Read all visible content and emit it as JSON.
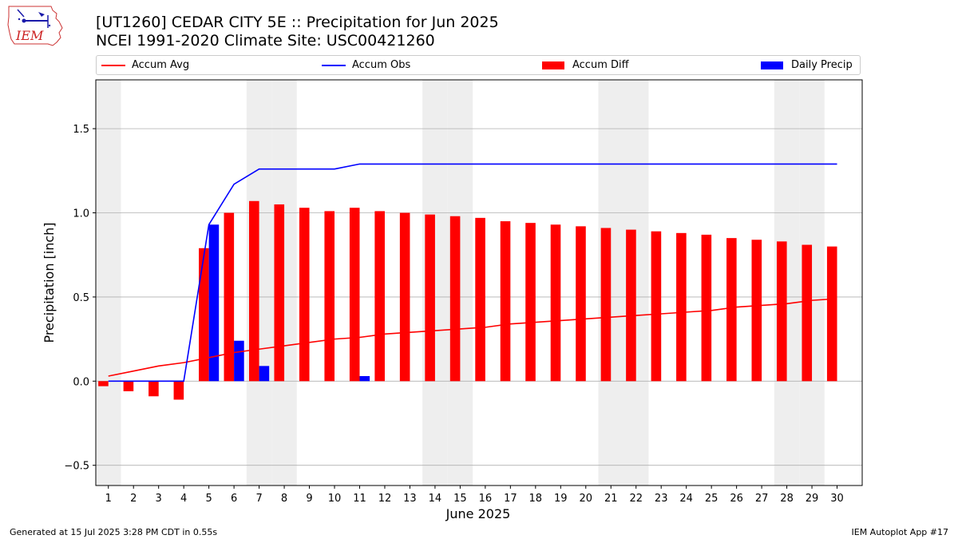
{
  "header": {
    "title_line1": "[UT1260] CEDAR CITY 5E :: Precipitation for Jun 2025",
    "title_line2": "NCEI 1991-2020 Climate Site: USC00421260",
    "logo_text": "IEM"
  },
  "legend": {
    "accum_avg": "Accum Avg",
    "accum_obs": "Accum Obs",
    "accum_diff": "Accum Diff",
    "daily_precip": "Daily Precip"
  },
  "colors": {
    "accum_avg": "#ff0000",
    "accum_obs": "#0000ff",
    "accum_diff": "#ff0000",
    "daily_precip": "#0000ff",
    "weekend_shade": "#eeeeee",
    "grid": "#b0b0b0"
  },
  "chart_data": {
    "type": "bar",
    "xlabel": "June 2025",
    "ylabel": "Precipitation [inch]",
    "ylim": [
      -0.62,
      1.79
    ],
    "yticks": [
      -0.5,
      0.0,
      0.5,
      1.0,
      1.5
    ],
    "ytick_labels": [
      "−0.5",
      "0.0",
      "0.5",
      "1.0",
      "1.5"
    ],
    "grid": "horizontal",
    "legend_placement": "top",
    "days": [
      1,
      2,
      3,
      4,
      5,
      6,
      7,
      8,
      9,
      10,
      11,
      12,
      13,
      14,
      15,
      16,
      17,
      18,
      19,
      20,
      21,
      22,
      23,
      24,
      25,
      26,
      27,
      28,
      29,
      30
    ],
    "weekend_days": [
      1,
      7,
      8,
      14,
      15,
      21,
      22,
      28,
      29
    ],
    "series": [
      {
        "name": "Accum Avg",
        "kind": "line",
        "values": [
          0.03,
          0.06,
          0.09,
          0.11,
          0.14,
          0.17,
          0.19,
          0.21,
          0.23,
          0.25,
          0.26,
          0.28,
          0.29,
          0.3,
          0.31,
          0.32,
          0.34,
          0.35,
          0.36,
          0.37,
          0.38,
          0.39,
          0.4,
          0.41,
          0.42,
          0.44,
          0.45,
          0.46,
          0.48,
          0.49
        ]
      },
      {
        "name": "Accum Obs",
        "kind": "line",
        "values": [
          0.0,
          0.0,
          0.0,
          0.0,
          0.93,
          1.17,
          1.26,
          1.26,
          1.26,
          1.26,
          1.29,
          1.29,
          1.29,
          1.29,
          1.29,
          1.29,
          1.29,
          1.29,
          1.29,
          1.29,
          1.29,
          1.29,
          1.29,
          1.29,
          1.29,
          1.29,
          1.29,
          1.29,
          1.29,
          1.29
        ]
      },
      {
        "name": "Accum Diff",
        "kind": "bar",
        "values": [
          -0.03,
          -0.06,
          -0.09,
          -0.11,
          0.79,
          1.0,
          1.07,
          1.05,
          1.03,
          1.01,
          1.03,
          1.01,
          1.0,
          0.99,
          0.98,
          0.97,
          0.95,
          0.94,
          0.93,
          0.92,
          0.91,
          0.9,
          0.89,
          0.88,
          0.87,
          0.85,
          0.84,
          0.83,
          0.81,
          0.8
        ]
      },
      {
        "name": "Daily Precip",
        "kind": "bar",
        "values": [
          0,
          0,
          0,
          0,
          0.93,
          0.24,
          0.09,
          0,
          0,
          0,
          0.03,
          0,
          0,
          0,
          0,
          0,
          0,
          0,
          0,
          0,
          0,
          0,
          0,
          0,
          0,
          0,
          0,
          0,
          0,
          0
        ]
      }
    ]
  },
  "footer": {
    "generated": "Generated at 15 Jul 2025 3:28 PM CDT in 0.55s",
    "app": "IEM Autoplot App #17"
  }
}
